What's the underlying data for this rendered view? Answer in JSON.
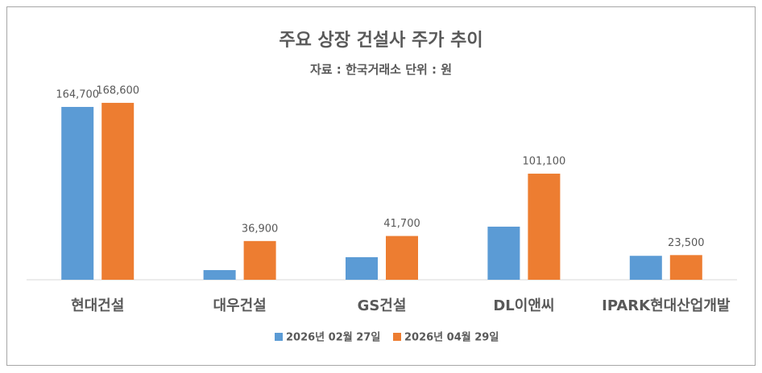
{
  "chart_data": {
    "type": "bar",
    "title": "주요 상장 건설사 주가 추이",
    "subtitle": "자료 : 한국거래소  단위 : 원",
    "categories": [
      "현대건설",
      "대우건설",
      "GS건설",
      "DL이앤씨",
      "IPARK현대산업개발"
    ],
    "series": [
      {
        "name": "2026년 02월 27일",
        "color": "#5b9bd5",
        "values": [
          164700,
          9200,
          21500,
          50600,
          22800
        ],
        "value_labels": [
          "164,700",
          null,
          null,
          null,
          null
        ]
      },
      {
        "name": "2026년 04월 29일",
        "color": "#ed7d31",
        "values": [
          168600,
          36900,
          41700,
          101100,
          23500
        ],
        "value_labels": [
          "168,600",
          "36,900",
          "41,700",
          "101,100",
          "23,500"
        ]
      }
    ],
    "ylim": [
      0,
      190000
    ],
    "legend": "bottom"
  }
}
